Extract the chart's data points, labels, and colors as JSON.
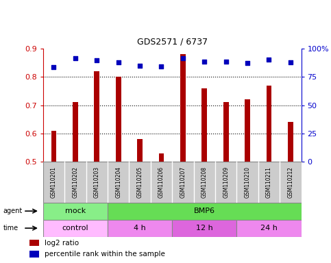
{
  "title": "GDS2571 / 6737",
  "samples": [
    "GSM110201",
    "GSM110202",
    "GSM110203",
    "GSM110204",
    "GSM110205",
    "GSM110206",
    "GSM110207",
    "GSM110208",
    "GSM110209",
    "GSM110210",
    "GSM110211",
    "GSM110212"
  ],
  "log2_ratio": [
    0.61,
    0.71,
    0.82,
    0.8,
    0.58,
    0.53,
    0.88,
    0.76,
    0.71,
    0.72,
    0.77,
    0.64
  ],
  "percentile_rank": [
    0.835,
    0.865,
    0.86,
    0.852,
    0.84,
    0.838,
    0.865,
    0.855,
    0.855,
    0.85,
    0.862,
    0.851
  ],
  "bar_bottom": 0.5,
  "ylim": [
    0.5,
    0.9
  ],
  "yticks_left": [
    0.5,
    0.6,
    0.7,
    0.8,
    0.9
  ],
  "yticks_right": [
    0,
    25,
    50,
    75,
    100
  ],
  "bar_color": "#aa0000",
  "dot_color": "#0000bb",
  "grid_color": "#000000",
  "agent_groups": [
    {
      "label": "mock",
      "start": 0,
      "end": 3,
      "color": "#88ee88"
    },
    {
      "label": "BMP6",
      "start": 3,
      "end": 12,
      "color": "#66dd55"
    }
  ],
  "time_groups": [
    {
      "label": "control",
      "start": 0,
      "end": 3,
      "color": "#ffbbff"
    },
    {
      "label": "4 h",
      "start": 3,
      "end": 6,
      "color": "#ee88ee"
    },
    {
      "label": "12 h",
      "start": 6,
      "end": 9,
      "color": "#dd66dd"
    },
    {
      "label": "24 h",
      "start": 9,
      "end": 12,
      "color": "#ee88ee"
    }
  ],
  "legend_red_label": "log2 ratio",
  "legend_blue_label": "percentile rank within the sample",
  "bar_color_legend": "#aa0000",
  "dot_color_legend": "#0000bb",
  "xlabel_color": "#cc0000",
  "ylabel_right_color": "#0000cc",
  "title_color": "#000000",
  "bg_color": "#ffffff",
  "sample_box_color": "#cccccc",
  "sample_box_border": "#888888"
}
